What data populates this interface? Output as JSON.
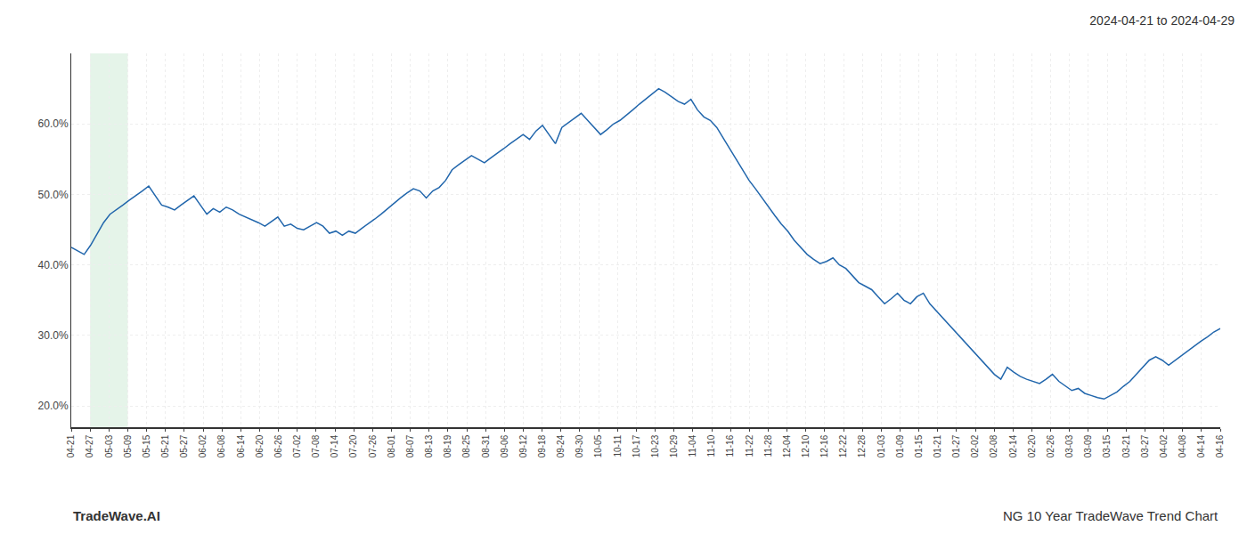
{
  "chart_data": {
    "type": "line",
    "title": "2024-04-21 to 2024-04-29",
    "annotations": [
      "TradeWave.AI",
      "NG 10 Year TradeWave Trend Chart"
    ],
    "color": "#2166ac",
    "grid": true,
    "bands": [
      {
        "start": 1,
        "end": 3,
        "color": "#d4edda"
      }
    ],
    "xlim": [
      0,
      61
    ],
    "xticks": [
      {
        "value": 0,
        "label": "04-21"
      },
      {
        "value": 1,
        "label": "04-27"
      },
      {
        "value": 2,
        "label": "05-03"
      },
      {
        "value": 3,
        "label": "05-09"
      },
      {
        "value": 4,
        "label": "05-15"
      },
      {
        "value": 5,
        "label": "05-21"
      },
      {
        "value": 6,
        "label": "05-27"
      },
      {
        "value": 7,
        "label": "06-02"
      },
      {
        "value": 8,
        "label": "06-08"
      },
      {
        "value": 9,
        "label": "06-14"
      },
      {
        "value": 10,
        "label": "06-20"
      },
      {
        "value": 11,
        "label": "06-26"
      },
      {
        "value": 12,
        "label": "07-02"
      },
      {
        "value": 13,
        "label": "07-08"
      },
      {
        "value": 14,
        "label": "07-14"
      },
      {
        "value": 15,
        "label": "07-20"
      },
      {
        "value": 16,
        "label": "07-26"
      },
      {
        "value": 17,
        "label": "08-01"
      },
      {
        "value": 18,
        "label": "08-07"
      },
      {
        "value": 19,
        "label": "08-13"
      },
      {
        "value": 20,
        "label": "08-19"
      },
      {
        "value": 21,
        "label": "08-25"
      },
      {
        "value": 22,
        "label": "08-31"
      },
      {
        "value": 23,
        "label": "09-06"
      },
      {
        "value": 24,
        "label": "09-12"
      },
      {
        "value": 25,
        "label": "09-18"
      },
      {
        "value": 26,
        "label": "09-24"
      },
      {
        "value": 27,
        "label": "09-30"
      },
      {
        "value": 28,
        "label": "10-05"
      },
      {
        "value": 29,
        "label": "10-11"
      },
      {
        "value": 30,
        "label": "10-17"
      },
      {
        "value": 31,
        "label": "10-23"
      },
      {
        "value": 32,
        "label": "10-29"
      },
      {
        "value": 33,
        "label": "11-04"
      },
      {
        "value": 34,
        "label": "11-10"
      },
      {
        "value": 35,
        "label": "11-16"
      },
      {
        "value": 36,
        "label": "11-22"
      },
      {
        "value": 37,
        "label": "11-28"
      },
      {
        "value": 38,
        "label": "12-04"
      },
      {
        "value": 39,
        "label": "12-10"
      },
      {
        "value": 40,
        "label": "12-16"
      },
      {
        "value": 41,
        "label": "12-22"
      },
      {
        "value": 42,
        "label": "12-28"
      },
      {
        "value": 43,
        "label": "01-03"
      },
      {
        "value": 44,
        "label": "01-09"
      },
      {
        "value": 45,
        "label": "01-15"
      },
      {
        "value": 46,
        "label": "01-21"
      },
      {
        "value": 47,
        "label": "01-27"
      },
      {
        "value": 48,
        "label": "02-02"
      },
      {
        "value": 49,
        "label": "02-08"
      },
      {
        "value": 50,
        "label": "02-14"
      },
      {
        "value": 51,
        "label": "02-20"
      },
      {
        "value": 52,
        "label": "02-26"
      },
      {
        "value": 53,
        "label": "03-03"
      },
      {
        "value": 54,
        "label": "03-09"
      },
      {
        "value": 55,
        "label": "03-15"
      },
      {
        "value": 56,
        "label": "03-21"
      },
      {
        "value": 57,
        "label": "03-27"
      },
      {
        "value": 58,
        "label": "04-02"
      },
      {
        "value": 59,
        "label": "04-08"
      },
      {
        "value": 60,
        "label": "04-14"
      },
      {
        "value": 61,
        "label": "04-16"
      }
    ],
    "ylim": [
      17.0,
      70.0
    ],
    "yticks": [
      {
        "value": 20.0,
        "label": "20.0%"
      },
      {
        "value": 30.0,
        "label": "30.0%"
      },
      {
        "value": 40.0,
        "label": "40.0%"
      },
      {
        "value": 50.0,
        "label": "50.0%"
      },
      {
        "value": 60.0,
        "label": "60.0%"
      }
    ],
    "values": [
      42.5,
      42.0,
      41.5,
      42.8,
      44.5,
      46.0,
      47.2,
      47.8,
      48.5,
      49.2,
      49.8,
      50.5,
      51.2,
      49.8,
      48.5,
      48.2,
      47.8,
      48.5,
      49.2,
      49.8,
      48.5,
      47.2,
      48.0,
      47.5,
      48.2,
      47.8,
      47.2,
      46.8,
      46.5,
      46.0,
      45.5,
      46.2,
      46.8,
      45.5,
      45.8,
      45.2,
      45.0,
      45.5,
      46.0,
      45.5,
      44.5,
      44.8,
      44.2,
      44.8,
      44.5,
      45.2,
      45.8,
      46.5,
      47.2,
      48.0,
      48.8,
      49.5,
      50.2,
      50.8,
      50.5,
      49.5,
      50.5,
      51.0,
      52.0,
      53.5,
      54.2,
      54.8,
      55.5,
      55.0,
      54.5,
      55.2,
      55.8,
      56.5,
      57.2,
      57.8,
      58.5,
      57.8,
      59.0,
      59.8,
      58.5,
      57.2,
      59.5,
      60.2,
      60.8,
      61.5,
      60.5,
      59.5,
      58.5,
      59.2,
      60.0,
      60.5,
      61.2,
      62.0,
      62.8,
      63.5,
      64.2,
      65.0,
      64.5,
      63.8,
      63.2,
      62.8,
      63.5,
      62.0,
      61.0,
      60.5,
      59.5,
      58.0,
      56.5,
      55.0,
      53.5,
      52.0,
      50.8,
      49.5,
      48.2,
      47.0,
      45.8,
      44.8,
      43.5,
      42.5,
      41.5,
      40.8,
      40.2,
      40.5,
      41.0,
      40.0,
      39.5,
      38.5,
      37.5,
      37.0,
      36.5,
      35.5,
      34.5,
      35.2,
      36.0,
      35.0,
      34.5,
      35.5,
      36.0,
      34.5,
      33.5,
      32.5,
      31.5,
      30.5,
      29.5,
      28.5,
      27.5,
      26.5,
      25.5,
      24.5,
      23.8,
      25.5,
      24.8,
      24.2,
      23.8,
      23.5,
      23.2,
      23.8,
      24.5,
      23.5,
      22.8,
      22.2,
      22.5,
      21.8,
      21.5,
      21.2,
      21.0,
      21.5,
      22.0,
      22.8,
      23.5,
      24.5,
      25.5,
      26.5,
      27.0,
      26.5,
      25.8,
      26.5,
      27.2,
      27.8,
      28.5,
      29.2,
      29.8,
      30.5,
      31.0
    ]
  }
}
